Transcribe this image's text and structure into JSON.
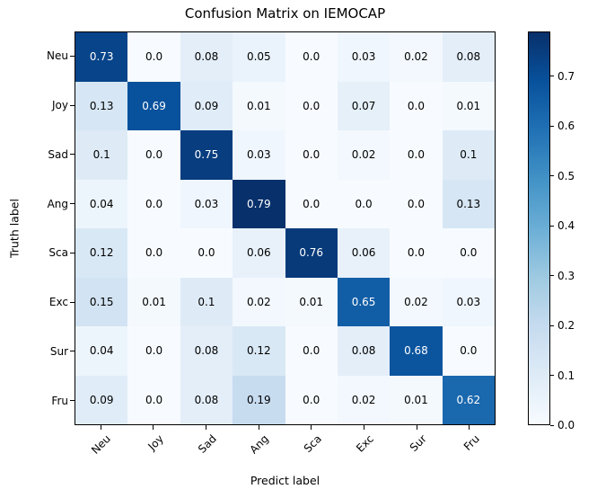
{
  "chart_data": {
    "type": "heatmap",
    "title": "Confusion Matrix on IEMOCAP",
    "xlabel": "Predict label",
    "ylabel": "Truth label",
    "x_categories": [
      "Neu",
      "Joy",
      "Sad",
      "Ang",
      "Sca",
      "Exc",
      "Sur",
      "Fru"
    ],
    "y_categories": [
      "Neu",
      "Joy",
      "Sad",
      "Ang",
      "Sca",
      "Exc",
      "Sur",
      "Fru"
    ],
    "rows": [
      [
        "0.73",
        "0.0",
        "0.08",
        "0.05",
        "0.0",
        "0.03",
        "0.02",
        "0.08"
      ],
      [
        "0.13",
        "0.69",
        "0.09",
        "0.01",
        "0.0",
        "0.07",
        "0.0",
        "0.01"
      ],
      [
        "0.1",
        "0.0",
        "0.75",
        "0.03",
        "0.0",
        "0.02",
        "0.0",
        "0.1"
      ],
      [
        "0.04",
        "0.0",
        "0.03",
        "0.79",
        "0.0",
        "0.0",
        "0.0",
        "0.13"
      ],
      [
        "0.12",
        "0.0",
        "0.0",
        "0.06",
        "0.76",
        "0.06",
        "0.0",
        "0.0"
      ],
      [
        "0.15",
        "0.01",
        "0.1",
        "0.02",
        "0.01",
        "0.65",
        "0.02",
        "0.03"
      ],
      [
        "0.04",
        "0.0",
        "0.08",
        "0.12",
        "0.0",
        "0.08",
        "0.68",
        "0.0"
      ],
      [
        "0.09",
        "0.0",
        "0.08",
        "0.19",
        "0.0",
        "0.02",
        "0.01",
        "0.62"
      ]
    ],
    "vmin": 0.0,
    "vmax": 0.79,
    "colormap": "Blues",
    "colormap_stops": [
      "#f7fbff",
      "#deebf7",
      "#c6dbef",
      "#9ecae1",
      "#6baed6",
      "#4292c6",
      "#2171b5",
      "#08519c",
      "#08306b"
    ],
    "colorbar_ticks": [
      "0.0",
      "0.1",
      "0.2",
      "0.3",
      "0.4",
      "0.5",
      "0.6",
      "0.7"
    ],
    "colorbar_position": "right",
    "grid": false,
    "cell_text_dark": "#000000",
    "cell_text_light": "#ffffff"
  }
}
